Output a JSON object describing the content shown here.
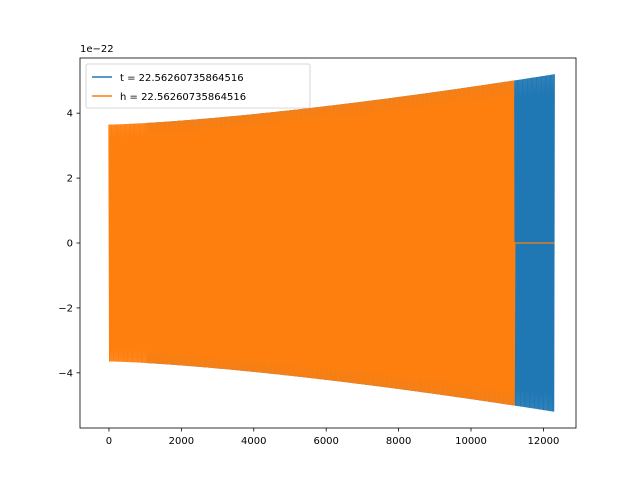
{
  "chart_data": {
    "type": "line",
    "title": "",
    "xlabel": "",
    "ylabel": "",
    "y_offset_text": "1e−22",
    "xlim": [
      -800,
      12900
    ],
    "ylim": [
      -5.7,
      5.7
    ],
    "x_ticks": [
      0,
      2000,
      4000,
      6000,
      8000,
      10000,
      12000
    ],
    "x_tick_labels": [
      "0",
      "2000",
      "4000",
      "6000",
      "8000",
      "10000",
      "12000"
    ],
    "y_ticks": [
      -4,
      -2,
      0,
      2,
      4
    ],
    "y_tick_labels": [
      "−4",
      "−2",
      "0",
      "2",
      "4"
    ],
    "grid": false,
    "legend_position": "top-left",
    "series": [
      {
        "name": "t = 22.56260735864516",
        "color": "#1f77b4",
        "x_range": [
          0,
          12300
        ],
        "zero_until": 1050,
        "amp_start": 3.65,
        "amp_end": 5.2,
        "oscillation": true
      },
      {
        "name": "h = 22.56260735864516",
        "color": "#ff7f0e",
        "x_range": [
          0,
          12300
        ],
        "signal_until": 11200,
        "amp_start": 3.65,
        "amp_end": 5.2,
        "oscillation": true
      }
    ]
  }
}
